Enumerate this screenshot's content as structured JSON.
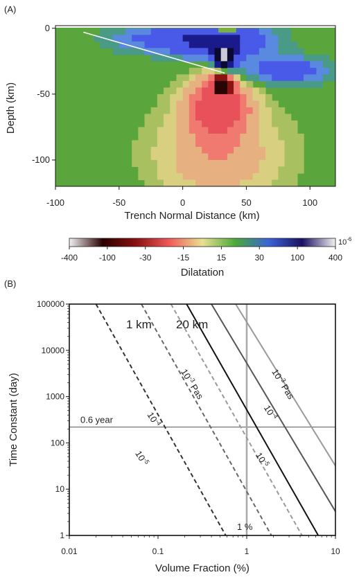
{
  "chart_data": [
    {
      "panel_label": "(A)",
      "type": "heatmap",
      "xlabel": "Trench Normal Distance (km)",
      "ylabel": "Depth (km)",
      "xlim": [
        -100,
        120
      ],
      "ylim": [
        -120,
        2
      ],
      "x_ticks": [
        -100,
        -50,
        0,
        50,
        100
      ],
      "y_ticks": [
        0,
        -50,
        -100
      ],
      "fault_trace": {
        "x": [
          -78,
          33
        ],
        "y": [
          -3,
          -34
        ]
      },
      "colorbar": {
        "label": "Dilatation",
        "unit": "10",
        "unit_exponent": "-6",
        "ticks": [
          "-400",
          "-100",
          "-30",
          "-15",
          "15",
          "30",
          "100",
          "400"
        ],
        "colors": [
          "#f2f2f2",
          "#2a0000",
          "#8a1010",
          "#f05a5a",
          "#e8e090",
          "#4aa83a",
          "#3a63d8",
          "#1a1060",
          "#f2f2f2"
        ]
      }
    },
    {
      "panel_label": "(B)",
      "type": "line",
      "xscale": "log",
      "yscale": "log",
      "xlim": [
        0.01,
        10
      ],
      "ylim": [
        1,
        100000
      ],
      "xlabel": "Volume Fraction (%)",
      "ylabel": "Time Constant (day)",
      "x_ticks": [
        "0.01",
        "0.1",
        "1",
        "10"
      ],
      "y_ticks": [
        "1",
        "10",
        "100",
        "1000",
        "10000",
        "100000"
      ],
      "reference_lines": {
        "horizontal": {
          "y": 219,
          "label": "0.6 year"
        },
        "vertical": {
          "x": 1,
          "label": "1 %"
        }
      },
      "group_labels": {
        "thin": "1 km",
        "thick": "20 km"
      },
      "series": [
        {
          "group": "1 km",
          "viscosity": "10^-5",
          "style": "dashed",
          "color": "#333333",
          "points": [
            [
              0.02,
              100000
            ],
            [
              0.58,
              1
            ]
          ]
        },
        {
          "group": "1 km",
          "viscosity": "10^-4",
          "style": "dashed",
          "color": "#666666",
          "points": [
            [
              0.065,
              100000
            ],
            [
              1.9,
              1
            ]
          ]
        },
        {
          "group": "1 km",
          "viscosity": "10^-3",
          "style": "dashed",
          "color": "#999999",
          "points": [
            [
              0.14,
              100000
            ],
            [
              4.2,
              1
            ]
          ]
        },
        {
          "group": "20 km",
          "viscosity": "10^-5",
          "style": "solid",
          "color": "#111111",
          "points": [
            [
              0.21,
              100000
            ],
            [
              6.4,
              1
            ]
          ]
        },
        {
          "group": "20 km",
          "viscosity": "10^-4",
          "style": "solid",
          "color": "#555555",
          "points": [
            [
              0.4,
              100000
            ],
            [
              10,
              3.3
            ]
          ]
        },
        {
          "group": "20 km",
          "viscosity": "10^-3",
          "style": "solid",
          "color": "#999999",
          "points": [
            [
              0.75,
              100000
            ],
            [
              10,
              32
            ]
          ]
        }
      ],
      "line_labels": [
        {
          "base": "10",
          "exp": "-3",
          "suffix": " Pas",
          "color": "#888888",
          "x": 0.18,
          "y": 3500
        },
        {
          "base": "10",
          "exp": "-4",
          "suffix": "",
          "color": "#555555",
          "x": 0.075,
          "y": 410
        },
        {
          "base": "10",
          "exp": "-5",
          "suffix": "",
          "color": "#333333",
          "x": 0.055,
          "y": 60
        },
        {
          "base": "10",
          "exp": "-3",
          "suffix": " Pas",
          "color": "#888888",
          "x": 1.9,
          "y": 3500
        },
        {
          "base": "10",
          "exp": "-4",
          "suffix": "",
          "color": "#555555",
          "x": 1.55,
          "y": 580
        },
        {
          "base": "10",
          "exp": "-5",
          "suffix": "",
          "color": "#333333",
          "x": 1.25,
          "y": 55
        }
      ]
    }
  ]
}
